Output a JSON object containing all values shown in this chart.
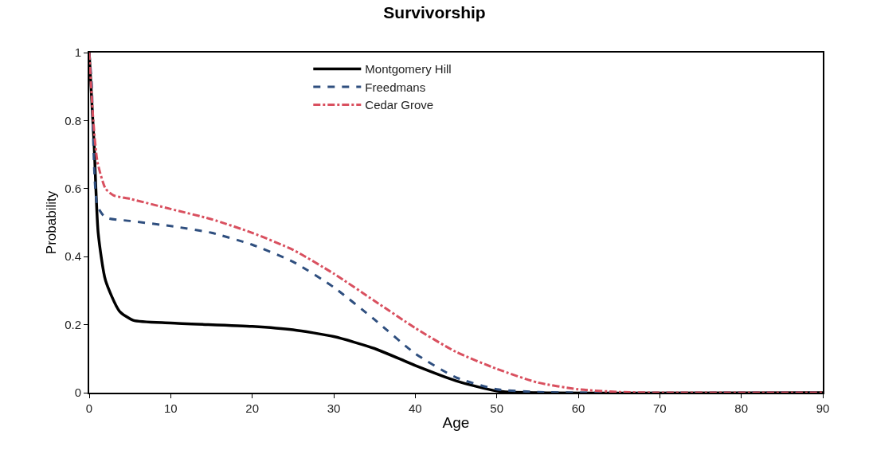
{
  "chart_data": {
    "type": "line",
    "title": "Survivorship",
    "xlabel": "Age",
    "ylabel": "Probability",
    "xlim": [
      0,
      90
    ],
    "xticks": [
      0,
      10,
      20,
      30,
      40,
      50,
      60,
      70,
      80,
      90
    ],
    "ylim": [
      0,
      1
    ],
    "yticks": [
      0,
      0.2,
      0.4,
      0.6,
      0.8,
      1
    ],
    "legend": "top",
    "marker": "none",
    "series": [
      {
        "name": "Montgomery Hill",
        "color": "#000000",
        "line_style": "solid",
        "x": [
          0,
          0.6,
          1.1,
          2,
          3.7,
          5.4,
          10,
          20,
          25,
          30,
          35,
          40,
          45,
          50,
          55,
          90
        ],
        "values": [
          1.0,
          0.73,
          0.47,
          0.33,
          0.24,
          0.213,
          0.205,
          0.195,
          0.185,
          0.165,
          0.13,
          0.08,
          0.035,
          0.005,
          0,
          0
        ]
      },
      {
        "name": "Freedmans",
        "color": "#2f4f7f",
        "line_style": "dashed",
        "x": [
          0,
          0.3,
          1,
          2,
          5,
          10,
          15,
          20,
          25,
          30,
          35,
          40,
          45,
          50,
          55,
          60,
          90
        ],
        "values": [
          1.0,
          0.91,
          0.55,
          0.515,
          0.505,
          0.49,
          0.47,
          0.435,
          0.385,
          0.31,
          0.215,
          0.115,
          0.045,
          0.01,
          0.002,
          0,
          0
        ]
      },
      {
        "name": "Cedar Grove",
        "color": "#d9505f",
        "line_style": "dashdot",
        "x": [
          0,
          0.5,
          1,
          2,
          3,
          5,
          10,
          15,
          20,
          25,
          30,
          35,
          40,
          45,
          50,
          55,
          60,
          65,
          70,
          90
        ],
        "values": [
          1.0,
          0.8,
          0.68,
          0.6,
          0.58,
          0.57,
          0.54,
          0.51,
          0.47,
          0.42,
          0.35,
          0.27,
          0.19,
          0.12,
          0.07,
          0.03,
          0.01,
          0.002,
          0,
          0
        ]
      }
    ]
  }
}
